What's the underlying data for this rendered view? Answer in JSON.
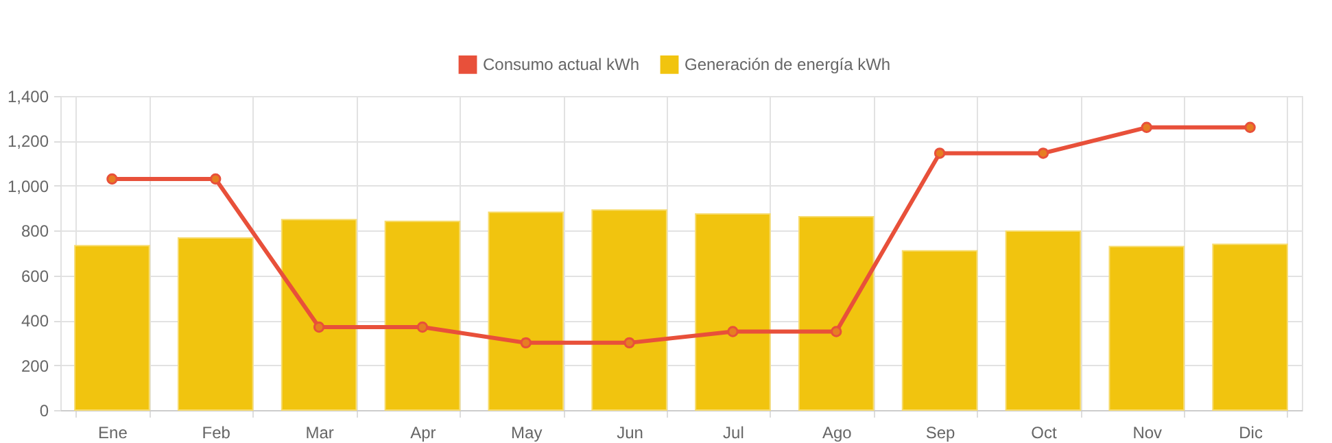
{
  "chart_data": {
    "type": "bar",
    "categories": [
      "Ene",
      "Feb",
      "Mar",
      "Apr",
      "May",
      "Jun",
      "Jul",
      "Ago",
      "Sep",
      "Oct",
      "Nov",
      "Dic"
    ],
    "series": [
      {
        "name": "Consumo actual kWh",
        "type": "line",
        "color": "#e8503a",
        "values": [
          1030,
          1030,
          370,
          370,
          300,
          300,
          350,
          350,
          1145,
          1145,
          1260,
          1260
        ]
      },
      {
        "name": "Generación de energía kWh",
        "color": "#f1c40f",
        "values": [
          733,
          767,
          849,
          841,
          882,
          892,
          874,
          862,
          710,
          798,
          729,
          739
        ]
      }
    ],
    "ylim": [
      0,
      1400
    ],
    "yticks": [
      0,
      200,
      400,
      600,
      800,
      {
        "value": 1000,
        "label": "1,000"
      },
      {
        "value": 1200,
        "label": "1,200"
      },
      {
        "value": 1400,
        "label": "1,400"
      }
    ],
    "grid": true,
    "legend": "top",
    "marker": "circle"
  }
}
